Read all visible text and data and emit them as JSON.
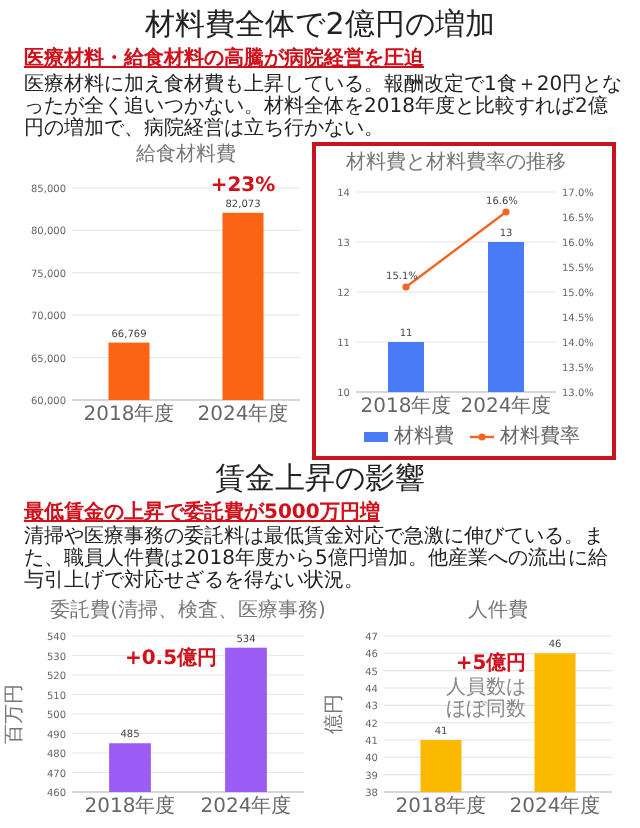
{
  "chart_data": [
    {
      "type": "bar",
      "title": "給食材料費",
      "categories": [
        "2018年度",
        "2024年度"
      ],
      "values": [
        66769,
        82073
      ],
      "value_labels": [
        "66,769",
        "82,073"
      ],
      "color": "#fa6414",
      "ylim": [
        60000,
        85000
      ],
      "yticks": [
        {
          "value": 60000,
          "label": "60,000"
        },
        {
          "value": 65000,
          "label": "65,000"
        },
        {
          "value": 70000,
          "label": "70,000"
        },
        {
          "value": 75000,
          "label": "75,000"
        },
        {
          "value": 80000,
          "label": "80,000"
        },
        {
          "value": 85000,
          "label": "85,000"
        }
      ],
      "grid": "y",
      "annotations": [
        "材料費全体で2億円の増加",
        "医療材料・給食材料の高騰が病院経営を圧迫",
        "医療材料に加え食材費も上昇している。報酬改定で1食＋20円となったが全く追いつかない。材料全体を2018年度と比較すれば2億円の増加で、病院経営は立ち行かない。",
        "+23%"
      ]
    },
    {
      "type": "bar",
      "title": "材料費と材料費率の推移",
      "categories": [
        "2018年度",
        "2024年度"
      ],
      "series": [
        {
          "name": "材料費",
          "color": "#4a7bf7",
          "values": [
            11,
            13
          ],
          "value_labels": [
            "11",
            "13"
          ]
        },
        {
          "name": "材料費率",
          "type": "line",
          "axis": "y2",
          "color": "#f26522",
          "values": [
            15.1,
            16.6
          ],
          "value_labels": [
            "15.1%",
            "16.6%"
          ]
        }
      ],
      "ylim": [
        10,
        14
      ],
      "yticks": [
        10,
        11,
        12,
        13,
        14
      ],
      "y2lim": [
        13,
        17
      ],
      "y2ticks": [
        {
          "value": 13,
          "label": "13.0%"
        },
        {
          "value": 13.5,
          "label": "13.5%"
        },
        {
          "value": 14,
          "label": "14.0%"
        },
        {
          "value": 14.5,
          "label": "14.5%"
        },
        {
          "value": 15,
          "label": "15.0%"
        },
        {
          "value": 15.5,
          "label": "15.5%"
        },
        {
          "value": 16,
          "label": "16.0%"
        },
        {
          "value": 16.5,
          "label": "16.5%"
        },
        {
          "value": 17,
          "label": "17.0%"
        }
      ],
      "grid": "y",
      "legend": "bottom",
      "marker": "circle"
    },
    {
      "type": "bar",
      "title": "委託費(清掃、検査、医療事務)",
      "ylabel": "百万円",
      "categories": [
        "2018年度",
        "2024年度"
      ],
      "values": [
        485,
        534
      ],
      "value_labels": [
        "485",
        "534"
      ],
      "color": "#9b5cf6",
      "ylim": [
        460,
        540
      ],
      "yticks": [
        460,
        470,
        480,
        490,
        500,
        510,
        520,
        530,
        540
      ],
      "grid": "y",
      "annotations": [
        "賃金上昇の影響",
        "最低賃金の上昇で委託費が5000万円増",
        "清掃や医療事務の委託料は最低賃金対応で急激に伸びている。また、職員人件費は2018年度から5億円増加。他産業への流出に給与引上げで対応せざるを得ない状況。",
        "+0.5億円"
      ]
    },
    {
      "type": "bar",
      "title": "人件費",
      "ylabel": "億円",
      "categories": [
        "2018年度",
        "2024年度"
      ],
      "values": [
        41,
        46
      ],
      "value_labels": [
        "41",
        "46"
      ],
      "color": "#fbb900",
      "ylim": [
        38,
        47
      ],
      "yticks": [
        38,
        39,
        40,
        41,
        42,
        43,
        44,
        45,
        46,
        47
      ],
      "grid": "y",
      "annotations": [
        "+5億円",
        "人員数は",
        "ほぼ同数"
      ]
    }
  ]
}
